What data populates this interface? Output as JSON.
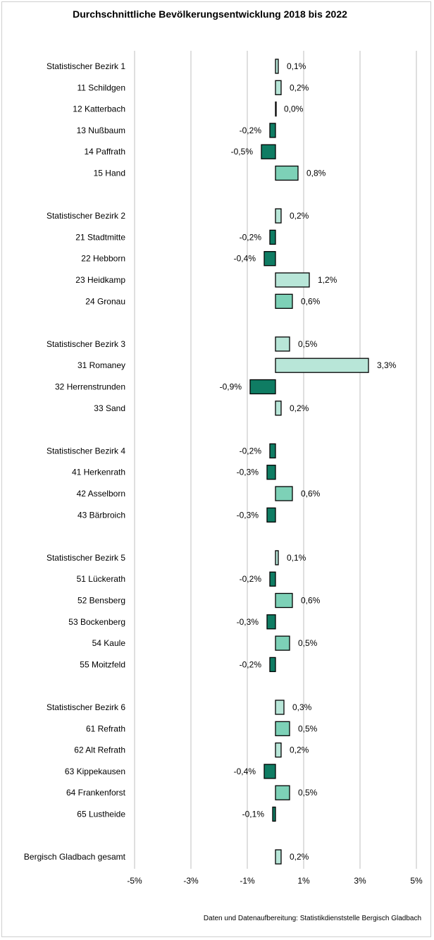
{
  "chart_data": {
    "type": "bar",
    "orientation": "horizontal",
    "title": "Durchschnittliche Bevölkerungsentwicklung 2018 bis 2022",
    "xlim": [
      -5,
      5
    ],
    "x_ticks": [
      -5,
      -3,
      -1,
      1,
      3,
      5
    ],
    "x_tick_labels": [
      "-5%",
      "-3%",
      "-1%",
      "1%",
      "3%",
      "5%"
    ],
    "grid": "vertical",
    "colors": {
      "positive_district": "#b8e6d8",
      "positive_mid": "#7dd1b7",
      "negative": "#0f7c63",
      "gridline": "#bfbfbf",
      "bar_border": "#000000"
    },
    "categories": [
      {
        "label": "Statistischer Bezirk 1",
        "value": 0.1,
        "value_label": "0,1%",
        "group": 1
      },
      {
        "label": "11 Schildgen",
        "value": 0.2,
        "value_label": "0,2%",
        "group": 1
      },
      {
        "label": "12 Katterbach",
        "value": 0.0,
        "value_label": "0,0%",
        "group": 1
      },
      {
        "label": "13 Nußbaum",
        "value": -0.2,
        "value_label": "-0,2%",
        "group": 1
      },
      {
        "label": "14 Paffrath",
        "value": -0.5,
        "value_label": "-0,5%",
        "group": 1
      },
      {
        "label": "15 Hand",
        "value": 0.8,
        "value_label": "0,8%",
        "group": 1
      },
      {
        "label": "Statistischer Bezirk 2",
        "value": 0.2,
        "value_label": "0,2%",
        "group": 2
      },
      {
        "label": "21 Stadtmitte",
        "value": -0.2,
        "value_label": "-0,2%",
        "group": 2
      },
      {
        "label": "22 Hebborn",
        "value": -0.4,
        "value_label": "-0,4%",
        "group": 2
      },
      {
        "label": "23 Heidkamp",
        "value": 1.2,
        "value_label": "1,2%",
        "group": 2
      },
      {
        "label": "24 Gronau",
        "value": 0.6,
        "value_label": "0,6%",
        "group": 2
      },
      {
        "label": "Statistischer Bezirk 3",
        "value": 0.5,
        "value_label": "0,5%",
        "group": 3
      },
      {
        "label": "31 Romaney",
        "value": 3.3,
        "value_label": "3,3%",
        "group": 3
      },
      {
        "label": "32 Herrenstrunden",
        "value": -0.9,
        "value_label": "-0,9%",
        "group": 3
      },
      {
        "label": "33 Sand",
        "value": 0.2,
        "value_label": "0,2%",
        "group": 3
      },
      {
        "label": "Statistischer Bezirk 4",
        "value": -0.2,
        "value_label": "-0,2%",
        "group": 4
      },
      {
        "label": "41 Herkenrath",
        "value": -0.3,
        "value_label": "-0,3%",
        "group": 4
      },
      {
        "label": "42 Asselborn",
        "value": 0.6,
        "value_label": "0,6%",
        "group": 4
      },
      {
        "label": "43 Bärbroich",
        "value": -0.3,
        "value_label": "-0,3%",
        "group": 4
      },
      {
        "label": "Statistischer Bezirk 5",
        "value": 0.1,
        "value_label": "0,1%",
        "group": 5
      },
      {
        "label": "51 Lückerath",
        "value": -0.2,
        "value_label": "-0,2%",
        "group": 5
      },
      {
        "label": "52 Bensberg",
        "value": 0.6,
        "value_label": "0,6%",
        "group": 5
      },
      {
        "label": "53 Bockenberg",
        "value": -0.3,
        "value_label": "-0,3%",
        "group": 5
      },
      {
        "label": "54 Kaule",
        "value": 0.5,
        "value_label": "0,5%",
        "group": 5
      },
      {
        "label": "55 Moitzfeld",
        "value": -0.2,
        "value_label": "-0,2%",
        "group": 5
      },
      {
        "label": "Statistischer Bezirk 6",
        "value": 0.3,
        "value_label": "0,3%",
        "group": 6
      },
      {
        "label": "61 Refrath",
        "value": 0.5,
        "value_label": "0,5%",
        "group": 6
      },
      {
        "label": "62 Alt Refrath",
        "value": 0.2,
        "value_label": "0,2%",
        "group": 6
      },
      {
        "label": "63 Kippekausen",
        "value": -0.4,
        "value_label": "-0,4%",
        "group": 6
      },
      {
        "label": "64 Frankenforst",
        "value": 0.5,
        "value_label": "0,5%",
        "group": 6
      },
      {
        "label": "65 Lustheide",
        "value": -0.1,
        "value_label": "-0,1%",
        "group": 6
      },
      {
        "label": "Bergisch Gladbach gesamt",
        "value": 0.2,
        "value_label": "0,2%",
        "group": 7
      }
    ]
  },
  "source_note": "Daten und Datenaufbereitung: Statistikdienststelle Bergisch Gladbach"
}
